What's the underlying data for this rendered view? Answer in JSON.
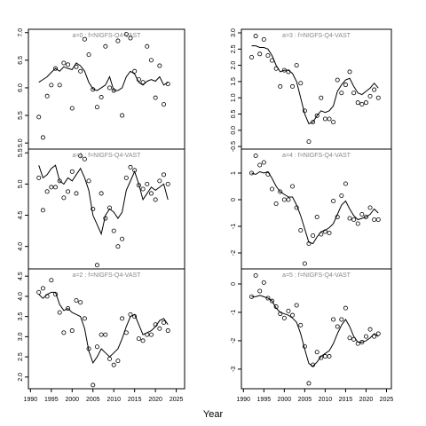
{
  "xlabel": "Year",
  "chart_data": [
    {
      "type": "scatter",
      "title": "a=0  :  f=NIGFS-Q4-VAST",
      "x": [
        1992,
        1993,
        1994,
        1995,
        1996,
        1997,
        1998,
        1999,
        2000,
        2001,
        2002,
        2003,
        2004,
        2005,
        2006,
        2007,
        2008,
        2009,
        2010,
        2011,
        2012,
        2013,
        2014,
        2015,
        2016,
        2017,
        2018,
        2019,
        2020,
        2021,
        2022,
        2023
      ],
      "points": [
        5.47,
        5.1,
        5.85,
        6.05,
        6.35,
        6.05,
        6.45,
        6.42,
        5.63,
        6.38,
        6.3,
        6.88,
        6.6,
        5.97,
        5.65,
        5.83,
        6.75,
        6.0,
        5.95,
        6.85,
        5.5,
        6.97,
        6.9,
        6.3,
        6.15,
        6.1,
        6.75,
        6.5,
        5.82,
        6.4,
        5.7,
        6.07
      ],
      "fit": [
        6.1,
        6.15,
        6.2,
        6.28,
        6.35,
        6.3,
        6.38,
        6.35,
        6.33,
        6.45,
        6.4,
        6.3,
        6.1,
        5.98,
        5.95,
        6.0,
        6.05,
        6.2,
        5.95,
        5.95,
        6.0,
        6.2,
        6.3,
        6.25,
        6.1,
        6.05,
        6.12,
        6.15,
        6.12,
        6.2,
        6.05,
        6.1
      ],
      "xlim": [
        1989.5,
        2027
      ],
      "ylim": [
        4.89,
        7.06
      ],
      "yticks": [
        {
          "value": 5,
          "label": "5.0"
        },
        5.5,
        {
          "value": 6,
          "label": "6.0"
        },
        6.5,
        {
          "value": 7,
          "label": "7.0"
        }
      ]
    },
    {
      "type": "scatter",
      "title": "a=1  :  f=NIGFS-Q4-VAST",
      "x": [
        1992,
        1993,
        1994,
        1995,
        1996,
        1997,
        1998,
        1999,
        2000,
        2001,
        2002,
        2003,
        2004,
        2005,
        2006,
        2007,
        2008,
        2009,
        2010,
        2011,
        2012,
        2013,
        2014,
        2015,
        2016,
        2017,
        2018,
        2019,
        2020,
        2021,
        2022,
        2023
      ],
      "points": [
        5.1,
        4.58,
        4.88,
        4.95,
        4.95,
        5.05,
        4.78,
        4.88,
        5.2,
        4.85,
        5.45,
        5.4,
        5.05,
        4.6,
        3.7,
        4.85,
        4.45,
        4.62,
        4.25,
        4.0,
        4.12,
        5.1,
        5.27,
        5.22,
        4.98,
        4.92,
        5.0,
        4.85,
        4.75,
        5.05,
        5.15,
        5.0
      ],
      "fit": [
        5.3,
        5.1,
        5.15,
        5.25,
        5.3,
        5.05,
        5.0,
        5.1,
        5.05,
        5.15,
        5.25,
        5.1,
        4.9,
        4.5,
        4.35,
        4.2,
        4.5,
        4.6,
        4.55,
        4.45,
        4.55,
        4.9,
        5.05,
        5.2,
        5.0,
        4.75,
        4.85,
        4.95,
        4.9,
        4.95,
        5.0,
        4.75
      ],
      "xlim": [
        1989.5,
        2027
      ],
      "ylim": [
        3.64,
        5.56
      ],
      "yticks": [
        {
          "value": 4,
          "label": "4.0"
        },
        4.5,
        {
          "value": 5,
          "label": "5.0"
        },
        5.5
      ]
    },
    {
      "type": "scatter",
      "title": "a=2  :  f=NIGFS-Q4-VAST",
      "x": [
        1992,
        1993,
        1994,
        1995,
        1996,
        1997,
        1998,
        1999,
        2000,
        2001,
        2002,
        2003,
        2004,
        2005,
        2006,
        2007,
        2008,
        2009,
        2010,
        2011,
        2012,
        2013,
        2014,
        2015,
        2016,
        2017,
        2018,
        2019,
        2020,
        2021,
        2022,
        2023
      ],
      "points": [
        4.1,
        4.2,
        4.0,
        4.4,
        4.05,
        3.6,
        3.1,
        3.7,
        3.15,
        3.9,
        3.85,
        3.45,
        2.7,
        1.8,
        2.75,
        3.05,
        3.05,
        2.45,
        2.3,
        2.4,
        3.45,
        3.1,
        3.55,
        3.5,
        2.95,
        2.9,
        3.05,
        3.05,
        3.3,
        3.2,
        3.35,
        3.15
      ],
      "fit": [
        4.05,
        3.95,
        4.05,
        4.1,
        4.1,
        3.8,
        3.65,
        3.7,
        3.6,
        3.55,
        3.5,
        3.2,
        2.65,
        2.35,
        2.5,
        2.7,
        2.6,
        2.5,
        2.6,
        2.7,
        2.95,
        3.25,
        3.5,
        3.55,
        3.3,
        3.05,
        3.1,
        3.15,
        3.25,
        3.4,
        3.45,
        3.3
      ],
      "xlim": [
        1989.5,
        2027
      ],
      "ylim": [
        1.71,
        4.68
      ],
      "yticks": [
        {
          "value": 2,
          "label": "2.0"
        },
        2.5,
        {
          "value": 3,
          "label": "3.0"
        },
        3.5,
        {
          "value": 4,
          "label": "4.0"
        },
        4.5
      ],
      "xticks": [
        1990,
        1995,
        2000,
        2005,
        2010,
        2015,
        2020,
        2025
      ]
    },
    {
      "type": "scatter",
      "title": "a=3  :  f=NIGFS-Q4-VAST",
      "x": [
        1992,
        1993,
        1994,
        1995,
        1996,
        1997,
        1998,
        1999,
        2000,
        2001,
        2002,
        2003,
        2004,
        2005,
        2006,
        2007,
        2008,
        2009,
        2010,
        2011,
        2012,
        2013,
        2014,
        2015,
        2016,
        2017,
        2018,
        2019,
        2020,
        2021,
        2022,
        2023
      ],
      "points": [
        2.25,
        2.9,
        2.35,
        2.8,
        2.3,
        2.15,
        1.9,
        1.35,
        1.85,
        1.8,
        1.35,
        2.0,
        1.45,
        0.6,
        -0.35,
        0.25,
        0.45,
        1.0,
        0.35,
        0.35,
        0.25,
        1.55,
        1.15,
        1.4,
        1.8,
        1.15,
        0.85,
        0.8,
        0.85,
        1.05,
        1.25,
        1.0
      ],
      "fit": [
        2.6,
        2.6,
        2.55,
        2.55,
        2.5,
        2.3,
        2.0,
        1.8,
        1.85,
        1.85,
        1.75,
        1.5,
        1.0,
        0.5,
        0.2,
        0.25,
        0.45,
        0.6,
        0.55,
        0.6,
        0.75,
        1.2,
        1.4,
        1.55,
        1.6,
        1.35,
        1.15,
        1.1,
        1.2,
        1.3,
        1.45,
        1.3
      ],
      "xlim": [
        1989.5,
        2026.2
      ],
      "ylim": [
        -0.58,
        3.11
      ],
      "yticks": [
        -0.5,
        {
          "value": 0,
          "label": "0.0"
        },
        0.5,
        {
          "value": 1,
          "label": "1.0"
        },
        1.5,
        {
          "value": 2,
          "label": "2.0"
        },
        2.5,
        {
          "value": 3,
          "label": "3.0"
        }
      ]
    },
    {
      "type": "scatter",
      "title": "a=4  :  f=NIGFS-Q4-VAST",
      "x": [
        1992,
        1993,
        1994,
        1995,
        1996,
        1997,
        1998,
        1999,
        2000,
        2001,
        2002,
        2003,
        2004,
        2005,
        2006,
        2007,
        2008,
        2009,
        2010,
        2011,
        2012,
        2013,
        2014,
        2015,
        2016,
        2017,
        2018,
        2019,
        2020,
        2021,
        2022,
        2023
      ],
      "points": [
        1.0,
        1.65,
        1.3,
        1.4,
        0.95,
        0.4,
        -0.15,
        0.3,
        0.0,
        0.0,
        0.5,
        -0.3,
        -1.15,
        -2.4,
        -1.65,
        -1.35,
        -0.65,
        -1.3,
        -1.2,
        -1.25,
        -0.05,
        -0.65,
        0.15,
        0.6,
        -0.7,
        -0.75,
        -0.9,
        -0.55,
        -0.65,
        -0.3,
        -0.75,
        -0.75
      ],
      "fit": [
        1.0,
        0.95,
        1.05,
        1.0,
        1.05,
        0.8,
        0.5,
        0.3,
        0.2,
        0.1,
        0.1,
        -0.2,
        -0.6,
        -1.1,
        -1.6,
        -1.65,
        -1.4,
        -1.2,
        -1.15,
        -1.05,
        -0.9,
        -0.55,
        -0.2,
        -0.05,
        -0.35,
        -0.6,
        -0.75,
        -0.7,
        -0.65,
        -0.55,
        -0.35,
        -0.5
      ],
      "xlim": [
        1989.5,
        2026.2
      ],
      "ylim": [
        -2.6,
        1.9
      ],
      "yticks": [
        -2,
        -1,
        0,
        1
      ]
    },
    {
      "type": "scatter",
      "title": "a=5  :  f=NIGFS-Q4-VAST",
      "x": [
        1992,
        1993,
        1994,
        1995,
        1996,
        1997,
        1998,
        1999,
        2000,
        2001,
        2002,
        2003,
        2004,
        2005,
        2006,
        2007,
        2008,
        2009,
        2010,
        2011,
        2012,
        2013,
        2014,
        2015,
        2016,
        2017,
        2018,
        2019,
        2020,
        2021,
        2022,
        2023
      ],
      "points": [
        -0.45,
        0.3,
        -0.25,
        0.05,
        -0.5,
        -0.6,
        -0.8,
        -1.05,
        -1.2,
        -0.95,
        -1.1,
        -0.75,
        -1.45,
        -2.2,
        -3.5,
        -2.85,
        -2.4,
        -2.6,
        -2.55,
        -2.55,
        -1.25,
        -1.5,
        -1.25,
        -0.85,
        -1.9,
        -1.95,
        -2.1,
        -2.05,
        -1.85,
        -1.6,
        -1.85,
        -1.75
      ],
      "fit": [
        -0.45,
        -0.45,
        -0.4,
        -0.45,
        -0.5,
        -0.6,
        -0.85,
        -1.0,
        -1.05,
        -1.1,
        -1.2,
        -1.35,
        -1.75,
        -2.3,
        -2.8,
        -2.9,
        -2.75,
        -2.55,
        -2.45,
        -2.35,
        -2.1,
        -1.75,
        -1.45,
        -1.25,
        -1.5,
        -1.85,
        -2.05,
        -2.05,
        -2.0,
        -1.9,
        -1.75,
        -1.85
      ],
      "xlim": [
        1989.5,
        2026.2
      ],
      "ylim": [
        -3.69,
        0.53
      ],
      "yticks": [
        -3,
        -2,
        -1,
        0
      ],
      "xticks": [
        1990,
        1995,
        2000,
        2005,
        2010,
        2015,
        2020,
        2025
      ]
    }
  ]
}
